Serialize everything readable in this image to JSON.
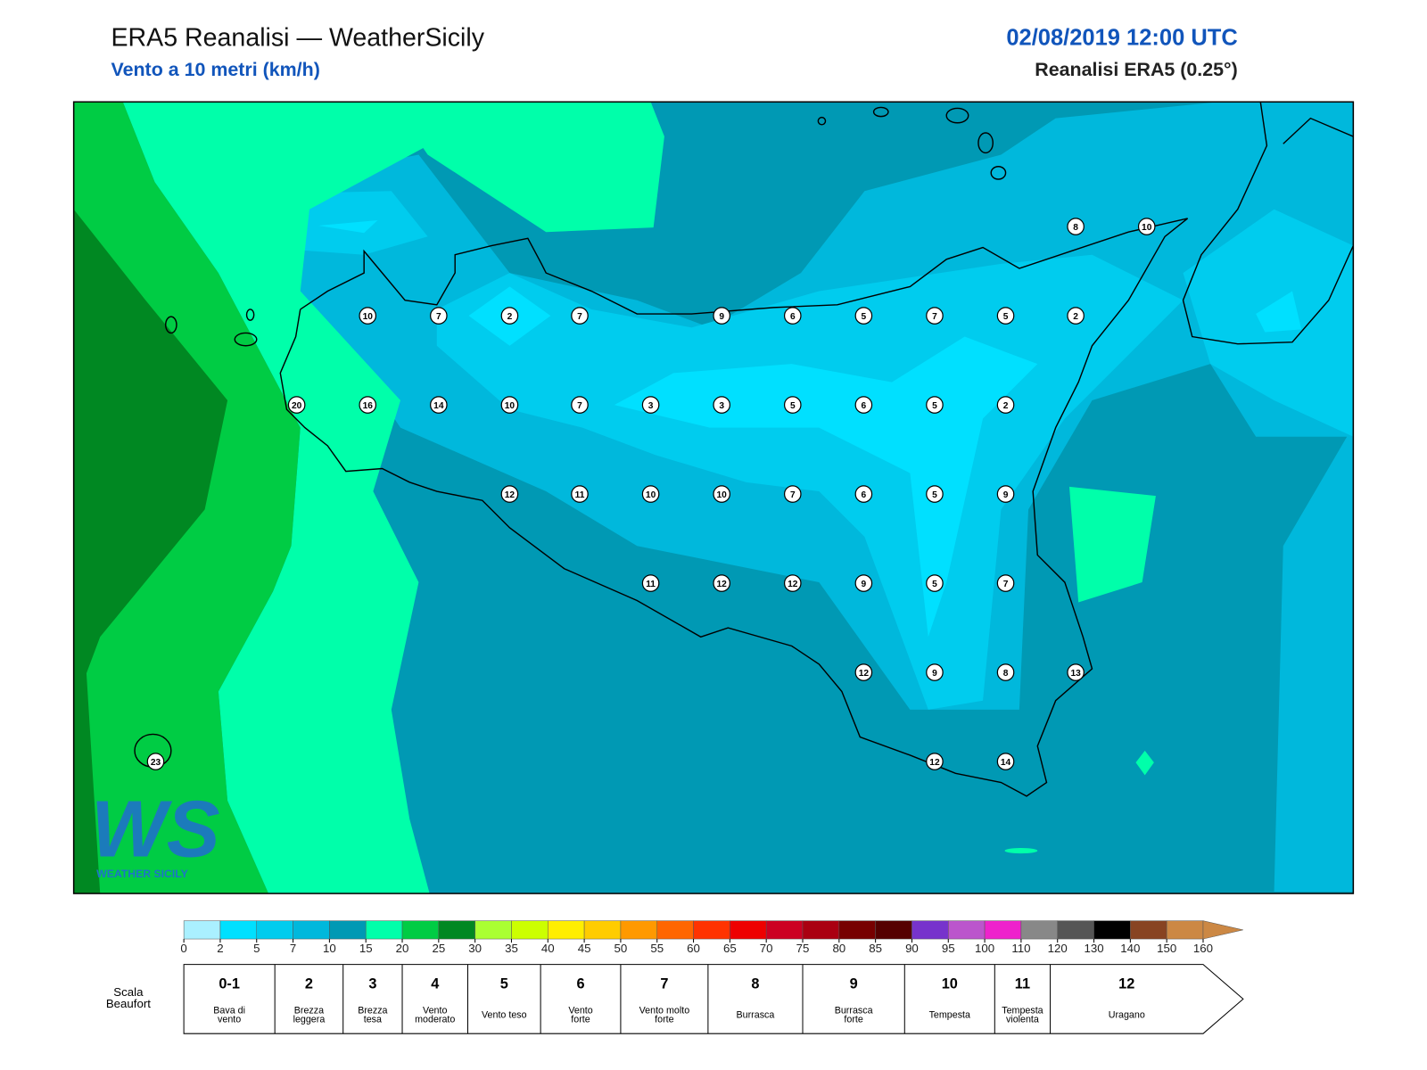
{
  "header": {
    "title": "ERA5 Reanalisi — WeatherSicily",
    "subtitle": "Vento a 10 metri (km/h)",
    "datetime": "02/08/2019 12:00 UTC",
    "source": "Reanalisi ERA5 (0.25°)"
  },
  "map": {
    "stations": [
      8,
      10,
      10,
      7,
      2,
      7,
      9,
      6,
      5,
      7,
      5,
      2,
      20,
      16,
      14,
      10,
      7,
      3,
      3,
      5,
      6,
      5,
      2,
      12,
      11,
      10,
      10,
      7,
      6,
      5,
      9,
      11,
      12,
      12,
      9,
      5,
      7,
      12,
      9,
      8,
      13,
      12,
      14,
      23
    ]
  },
  "logo": {
    "mark": "WS",
    "name": "WEATHER SICILY"
  },
  "colorbar": {
    "ticks": [
      0,
      2,
      5,
      7,
      10,
      15,
      20,
      25,
      30,
      35,
      40,
      45,
      50,
      55,
      60,
      65,
      70,
      75,
      80,
      85,
      90,
      95,
      100,
      110,
      120,
      130,
      140,
      150,
      160
    ],
    "colors": [
      "#aaf0ff",
      "#00e0ff",
      "#00ccee",
      "#00b8dc",
      "#0099b4",
      "#00ffaa",
      "#00cc44",
      "#008822",
      "#aaff33",
      "#ccff00",
      "#ffee00",
      "#ffcc00",
      "#ff9900",
      "#ff6600",
      "#ff3300",
      "#ee0000",
      "#cc0022",
      "#aa0011",
      "#770000",
      "#550000",
      "#7733cc",
      "#bb55cc",
      "#ee22cc",
      "#888888",
      "#555555",
      "#000000",
      "#884422",
      "#cc8844"
    ]
  },
  "beaufort": {
    "label": [
      "Scala",
      "Beaufort"
    ],
    "levels": [
      {
        "force": "0-1",
        "name": [
          "Bava di",
          "vento"
        ]
      },
      {
        "force": "2",
        "name": [
          "Brezza",
          "leggera"
        ]
      },
      {
        "force": "3",
        "name": [
          "Brezza",
          "tesa"
        ]
      },
      {
        "force": "4",
        "name": [
          "Vento",
          "moderato"
        ]
      },
      {
        "force": "5",
        "name": [
          "Vento teso"
        ]
      },
      {
        "force": "6",
        "name": [
          "Vento",
          "forte"
        ]
      },
      {
        "force": "7",
        "name": [
          "Vento molto",
          "forte"
        ]
      },
      {
        "force": "8",
        "name": [
          "Burrasca"
        ]
      },
      {
        "force": "9",
        "name": [
          "Burrasca",
          "forte"
        ]
      },
      {
        "force": "10",
        "name": [
          "Tempesta"
        ]
      },
      {
        "force": "11",
        "name": [
          "Tempesta",
          "violenta"
        ]
      },
      {
        "force": "12",
        "name": [
          "Uragano"
        ]
      }
    ]
  }
}
